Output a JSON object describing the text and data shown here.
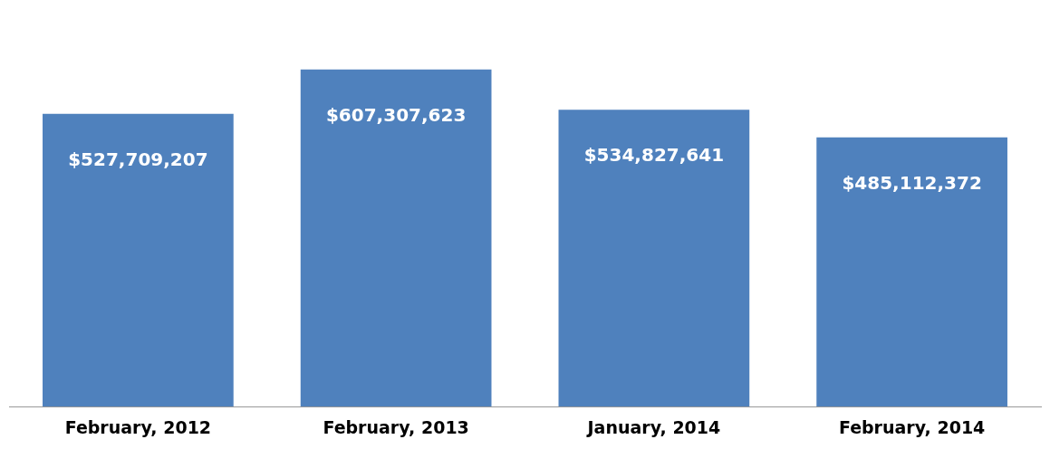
{
  "chart_data": {
    "type": "bar",
    "categories": [
      "February, 2012",
      "February, 2013",
      "January, 2014",
      "February, 2014"
    ],
    "values": [
      527709207,
      607307623,
      534827641,
      485112372
    ],
    "color": "#4f81bd",
    "data_labels": true,
    "value_labels": [
      "$527,709,207",
      "$607,307,623",
      "$534,827,641",
      "$485,112,372"
    ],
    "grid": false,
    "legend": false
  }
}
